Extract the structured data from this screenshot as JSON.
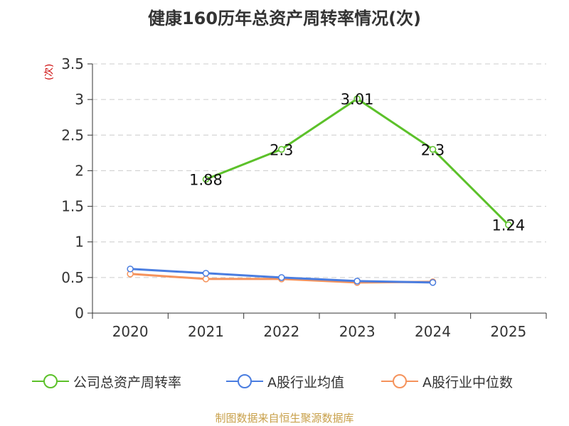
{
  "title": "健康160历年总资产周转率情况(次)",
  "y_unit": "(次)",
  "source": "制图数据来自恒生聚源数据库",
  "colors": {
    "company": "#5cc12a",
    "industry_avg": "#4a7de0",
    "industry_median": "#f5935c"
  },
  "chart_data": {
    "type": "line",
    "title": "健康160历年总资产周转率情况(次)",
    "xlabel": "",
    "ylabel": "(次)",
    "categories": [
      "2020",
      "2021",
      "2022",
      "2023",
      "2024",
      "2025"
    ],
    "ylim": [
      0,
      3.5
    ],
    "yticks": [
      "0",
      "0.5",
      "1",
      "1.5",
      "2",
      "2.5",
      "3",
      "3.5"
    ],
    "grid": true,
    "legend": "bottom",
    "series": [
      {
        "name": "公司总资产周转率",
        "color": "#5cc12a",
        "values": [
          null,
          1.88,
          2.3,
          3.01,
          2.3,
          1.24
        ],
        "labels": [
          "",
          "1.88",
          "2.3",
          "3.01",
          "2.3",
          "1.24"
        ]
      },
      {
        "name": "A股行业均值",
        "color": "#4a7de0",
        "values": [
          0.62,
          0.56,
          0.5,
          0.45,
          0.43,
          null
        ]
      },
      {
        "name": "A股行业中位数",
        "color": "#f5935c",
        "values": [
          0.55,
          0.48,
          0.48,
          0.43,
          0.44,
          null
        ]
      }
    ]
  }
}
